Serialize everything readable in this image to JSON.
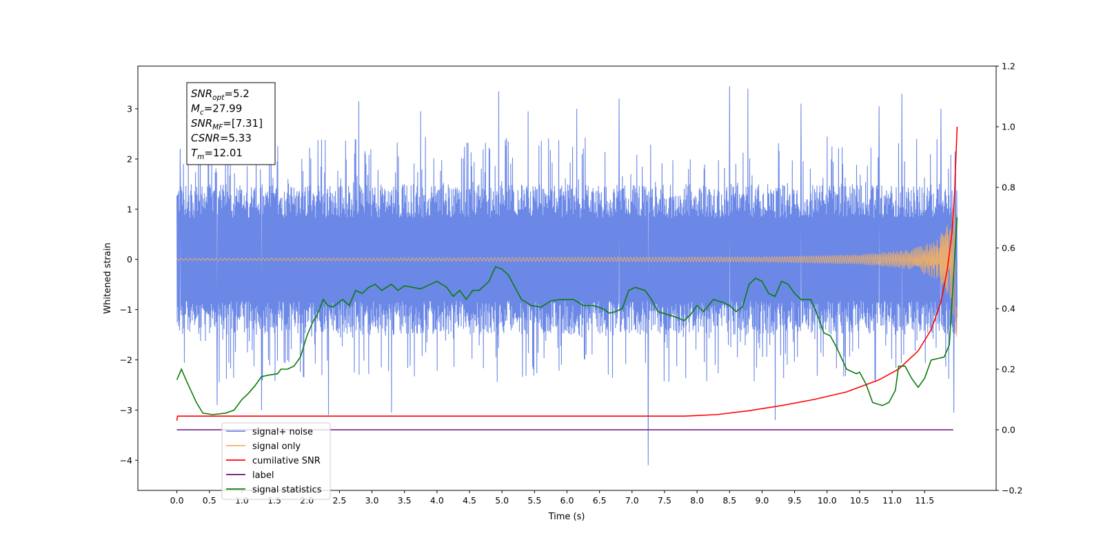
{
  "chart_data": {
    "type": "line",
    "xlabel": "Time (s)",
    "ylabel": "Whitened strain",
    "xlim": [
      -0.6,
      12.6
    ],
    "ylim": [
      -4.6,
      3.85
    ],
    "y2lim": [
      -0.2,
      1.2
    ],
    "x_ticks": [
      0.0,
      0.5,
      1.0,
      1.5,
      2.0,
      2.5,
      3.0,
      3.5,
      4.0,
      4.5,
      5.0,
      5.5,
      6.0,
      6.5,
      7.0,
      7.5,
      8.0,
      8.5,
      9.0,
      9.5,
      10.0,
      10.5,
      11.0,
      11.5
    ],
    "x_tick_labels": [
      "0.0",
      "0.5",
      "1.0",
      "1.5",
      "2.0",
      "2.5",
      "3.0",
      "3.5",
      "4.0",
      "4.5",
      "5.0",
      "5.5",
      "6.0",
      "6.5",
      "7.0",
      "7.5",
      "8.0",
      "8.5",
      "9.0",
      "9.5",
      "10.0",
      "10.5",
      "11.0",
      "11.5"
    ],
    "y_ticks": [
      -4,
      -3,
      -2,
      -1,
      0,
      1,
      2,
      3
    ],
    "y_tick_labels": [
      "−4",
      "−3",
      "−2",
      "−1",
      "0",
      "1",
      "2",
      "3"
    ],
    "y2_ticks": [
      -0.2,
      0.0,
      0.2,
      0.4,
      0.6,
      0.8,
      1.0,
      1.2
    ],
    "y2_tick_labels": [
      "−0.2",
      "0.0",
      "0.2",
      "0.4",
      "0.6",
      "0.8",
      "1.0",
      "1.2"
    ],
    "grid": false,
    "legend_position": "lower-left",
    "series": [
      {
        "name": "signal+ noise",
        "axis": "left",
        "color": "#6b88e6",
        "x_range": [
          0.0,
          12.0
        ],
        "band_range": [
          -1.5,
          1.5
        ],
        "spike_peaks": [
          {
            "x": 0.05,
            "y": 2.2
          },
          {
            "x": 0.1,
            "y": 1.9
          },
          {
            "x": 0.62,
            "y": -2.9
          },
          {
            "x": 1.3,
            "y": -3.0
          },
          {
            "x": 2.33,
            "y": -3.1
          },
          {
            "x": 2.8,
            "y": 3.15
          },
          {
            "x": 3.3,
            "y": -3.05
          },
          {
            "x": 3.75,
            "y": 2.95
          },
          {
            "x": 4.95,
            "y": 3.35
          },
          {
            "x": 5.4,
            "y": 2.95
          },
          {
            "x": 6.15,
            "y": 3.0
          },
          {
            "x": 6.8,
            "y": 3.2
          },
          {
            "x": 7.25,
            "y": -4.1
          },
          {
            "x": 8.5,
            "y": 3.45
          },
          {
            "x": 8.78,
            "y": 3.4
          },
          {
            "x": 9.2,
            "y": -3.2
          },
          {
            "x": 9.6,
            "y": 3.1
          },
          {
            "x": 10.8,
            "y": 3.05
          },
          {
            "x": 11.15,
            "y": 3.3
          },
          {
            "x": 11.75,
            "y": 3.0
          },
          {
            "x": 11.95,
            "y": -3.05
          }
        ]
      },
      {
        "name": "signal only",
        "axis": "left",
        "color": "#f5b062",
        "x_range": [
          0.0,
          12.0
        ],
        "chirp_envelope": [
          {
            "x": 0.0,
            "y": 0.02
          },
          {
            "x": 9.0,
            "y": 0.05
          },
          {
            "x": 10.5,
            "y": 0.1
          },
          {
            "x": 11.3,
            "y": 0.2
          },
          {
            "x": 11.7,
            "y": 0.4
          },
          {
            "x": 11.9,
            "y": 0.8
          },
          {
            "x": 12.0,
            "y": 1.6
          }
        ]
      },
      {
        "name": "cumilative SNR",
        "axis": "right",
        "color": "#ff0000",
        "points": [
          {
            "x": 0.0,
            "y": 0.03
          },
          {
            "x": 0.01,
            "y": 0.045
          },
          {
            "x": 1.0,
            "y": 0.045
          },
          {
            "x": 3.0,
            "y": 0.045
          },
          {
            "x": 5.0,
            "y": 0.045
          },
          {
            "x": 7.0,
            "y": 0.045
          },
          {
            "x": 7.8,
            "y": 0.045
          },
          {
            "x": 8.3,
            "y": 0.05
          },
          {
            "x": 8.8,
            "y": 0.063
          },
          {
            "x": 9.3,
            "y": 0.08
          },
          {
            "x": 9.8,
            "y": 0.1
          },
          {
            "x": 10.3,
            "y": 0.125
          },
          {
            "x": 10.8,
            "y": 0.165
          },
          {
            "x": 11.1,
            "y": 0.2
          },
          {
            "x": 11.4,
            "y": 0.26
          },
          {
            "x": 11.6,
            "y": 0.33
          },
          {
            "x": 11.75,
            "y": 0.42
          },
          {
            "x": 11.85,
            "y": 0.53
          },
          {
            "x": 11.92,
            "y": 0.65
          },
          {
            "x": 11.96,
            "y": 0.78
          },
          {
            "x": 12.0,
            "y": 1.0
          }
        ]
      },
      {
        "name": "label",
        "axis": "right",
        "color": "#6a0d7a",
        "points": [
          {
            "x": 0.0,
            "y": 0.0
          },
          {
            "x": 11.94,
            "y": 0.0
          }
        ]
      },
      {
        "name": "signal statistics",
        "axis": "right",
        "color": "#0a7a0a",
        "points": [
          {
            "x": 0.0,
            "y": 0.165
          },
          {
            "x": 0.07,
            "y": 0.2
          },
          {
            "x": 0.15,
            "y": 0.16
          },
          {
            "x": 0.3,
            "y": 0.09
          },
          {
            "x": 0.4,
            "y": 0.055
          },
          {
            "x": 0.55,
            "y": 0.05
          },
          {
            "x": 0.75,
            "y": 0.055
          },
          {
            "x": 0.88,
            "y": 0.065
          },
          {
            "x": 1.0,
            "y": 0.1
          },
          {
            "x": 1.1,
            "y": 0.12
          },
          {
            "x": 1.2,
            "y": 0.145
          },
          {
            "x": 1.3,
            "y": 0.175
          },
          {
            "x": 1.4,
            "y": 0.18
          },
          {
            "x": 1.55,
            "y": 0.185
          },
          {
            "x": 1.6,
            "y": 0.2
          },
          {
            "x": 1.7,
            "y": 0.2
          },
          {
            "x": 1.8,
            "y": 0.21
          },
          {
            "x": 1.9,
            "y": 0.24
          },
          {
            "x": 2.0,
            "y": 0.31
          },
          {
            "x": 2.1,
            "y": 0.36
          },
          {
            "x": 2.15,
            "y": 0.375
          },
          {
            "x": 2.25,
            "y": 0.43
          },
          {
            "x": 2.32,
            "y": 0.41
          },
          {
            "x": 2.4,
            "y": 0.405
          },
          {
            "x": 2.55,
            "y": 0.43
          },
          {
            "x": 2.65,
            "y": 0.41
          },
          {
            "x": 2.75,
            "y": 0.46
          },
          {
            "x": 2.85,
            "y": 0.45
          },
          {
            "x": 2.95,
            "y": 0.47
          },
          {
            "x": 3.05,
            "y": 0.48
          },
          {
            "x": 3.15,
            "y": 0.46
          },
          {
            "x": 3.3,
            "y": 0.48
          },
          {
            "x": 3.4,
            "y": 0.46
          },
          {
            "x": 3.5,
            "y": 0.475
          },
          {
            "x": 3.75,
            "y": 0.465
          },
          {
            "x": 3.9,
            "y": 0.48
          },
          {
            "x": 4.0,
            "y": 0.49
          },
          {
            "x": 4.15,
            "y": 0.47
          },
          {
            "x": 4.25,
            "y": 0.44
          },
          {
            "x": 4.35,
            "y": 0.46
          },
          {
            "x": 4.45,
            "y": 0.43
          },
          {
            "x": 4.55,
            "y": 0.46
          },
          {
            "x": 4.65,
            "y": 0.46
          },
          {
            "x": 4.8,
            "y": 0.49
          },
          {
            "x": 4.9,
            "y": 0.538
          },
          {
            "x": 5.0,
            "y": 0.53
          },
          {
            "x": 5.1,
            "y": 0.51
          },
          {
            "x": 5.2,
            "y": 0.47
          },
          {
            "x": 5.3,
            "y": 0.43
          },
          {
            "x": 5.45,
            "y": 0.41
          },
          {
            "x": 5.6,
            "y": 0.405
          },
          {
            "x": 5.75,
            "y": 0.425
          },
          {
            "x": 5.9,
            "y": 0.43
          },
          {
            "x": 6.1,
            "y": 0.43
          },
          {
            "x": 6.25,
            "y": 0.41
          },
          {
            "x": 6.4,
            "y": 0.41
          },
          {
            "x": 6.55,
            "y": 0.4
          },
          {
            "x": 6.65,
            "y": 0.385
          },
          {
            "x": 6.75,
            "y": 0.39
          },
          {
            "x": 6.85,
            "y": 0.4
          },
          {
            "x": 6.95,
            "y": 0.46
          },
          {
            "x": 7.05,
            "y": 0.47
          },
          {
            "x": 7.2,
            "y": 0.46
          },
          {
            "x": 7.3,
            "y": 0.43
          },
          {
            "x": 7.4,
            "y": 0.39
          },
          {
            "x": 7.55,
            "y": 0.38
          },
          {
            "x": 7.7,
            "y": 0.37
          },
          {
            "x": 7.8,
            "y": 0.36
          },
          {
            "x": 7.9,
            "y": 0.38
          },
          {
            "x": 8.0,
            "y": 0.41
          },
          {
            "x": 8.1,
            "y": 0.39
          },
          {
            "x": 8.25,
            "y": 0.43
          },
          {
            "x": 8.4,
            "y": 0.42
          },
          {
            "x": 8.5,
            "y": 0.41
          },
          {
            "x": 8.6,
            "y": 0.39
          },
          {
            "x": 8.7,
            "y": 0.405
          },
          {
            "x": 8.8,
            "y": 0.48
          },
          {
            "x": 8.9,
            "y": 0.5
          },
          {
            "x": 9.0,
            "y": 0.49
          },
          {
            "x": 9.1,
            "y": 0.45
          },
          {
            "x": 9.2,
            "y": 0.44
          },
          {
            "x": 9.3,
            "y": 0.49
          },
          {
            "x": 9.4,
            "y": 0.48
          },
          {
            "x": 9.5,
            "y": 0.45
          },
          {
            "x": 9.6,
            "y": 0.43
          },
          {
            "x": 9.75,
            "y": 0.43
          },
          {
            "x": 9.85,
            "y": 0.38
          },
          {
            "x": 9.95,
            "y": 0.32
          },
          {
            "x": 10.05,
            "y": 0.31
          },
          {
            "x": 10.15,
            "y": 0.27
          },
          {
            "x": 10.3,
            "y": 0.2
          },
          {
            "x": 10.45,
            "y": 0.185
          },
          {
            "x": 10.5,
            "y": 0.19
          },
          {
            "x": 10.6,
            "y": 0.15
          },
          {
            "x": 10.7,
            "y": 0.09
          },
          {
            "x": 10.85,
            "y": 0.08
          },
          {
            "x": 10.95,
            "y": 0.09
          },
          {
            "x": 11.05,
            "y": 0.13
          },
          {
            "x": 11.1,
            "y": 0.21
          },
          {
            "x": 11.2,
            "y": 0.21
          },
          {
            "x": 11.3,
            "y": 0.17
          },
          {
            "x": 11.4,
            "y": 0.14
          },
          {
            "x": 11.5,
            "y": 0.17
          },
          {
            "x": 11.6,
            "y": 0.23
          },
          {
            "x": 11.7,
            "y": 0.235
          },
          {
            "x": 11.8,
            "y": 0.24
          },
          {
            "x": 11.88,
            "y": 0.28
          },
          {
            "x": 11.93,
            "y": 0.45
          },
          {
            "x": 11.97,
            "y": 0.6
          },
          {
            "x": 12.0,
            "y": 0.7
          }
        ]
      }
    ],
    "info_box": [
      {
        "base": "SNR",
        "sub": "opt",
        "value": "=5.2"
      },
      {
        "base": "M",
        "sub": "c",
        "value": "=27.99"
      },
      {
        "base": "SNR",
        "sub": "MF",
        "value": "=[7.31]"
      },
      {
        "base": "CSNR",
        "sub": "",
        "value": "=5.33"
      },
      {
        "base": "T",
        "sub": "m",
        "value": "=12.01"
      }
    ]
  }
}
